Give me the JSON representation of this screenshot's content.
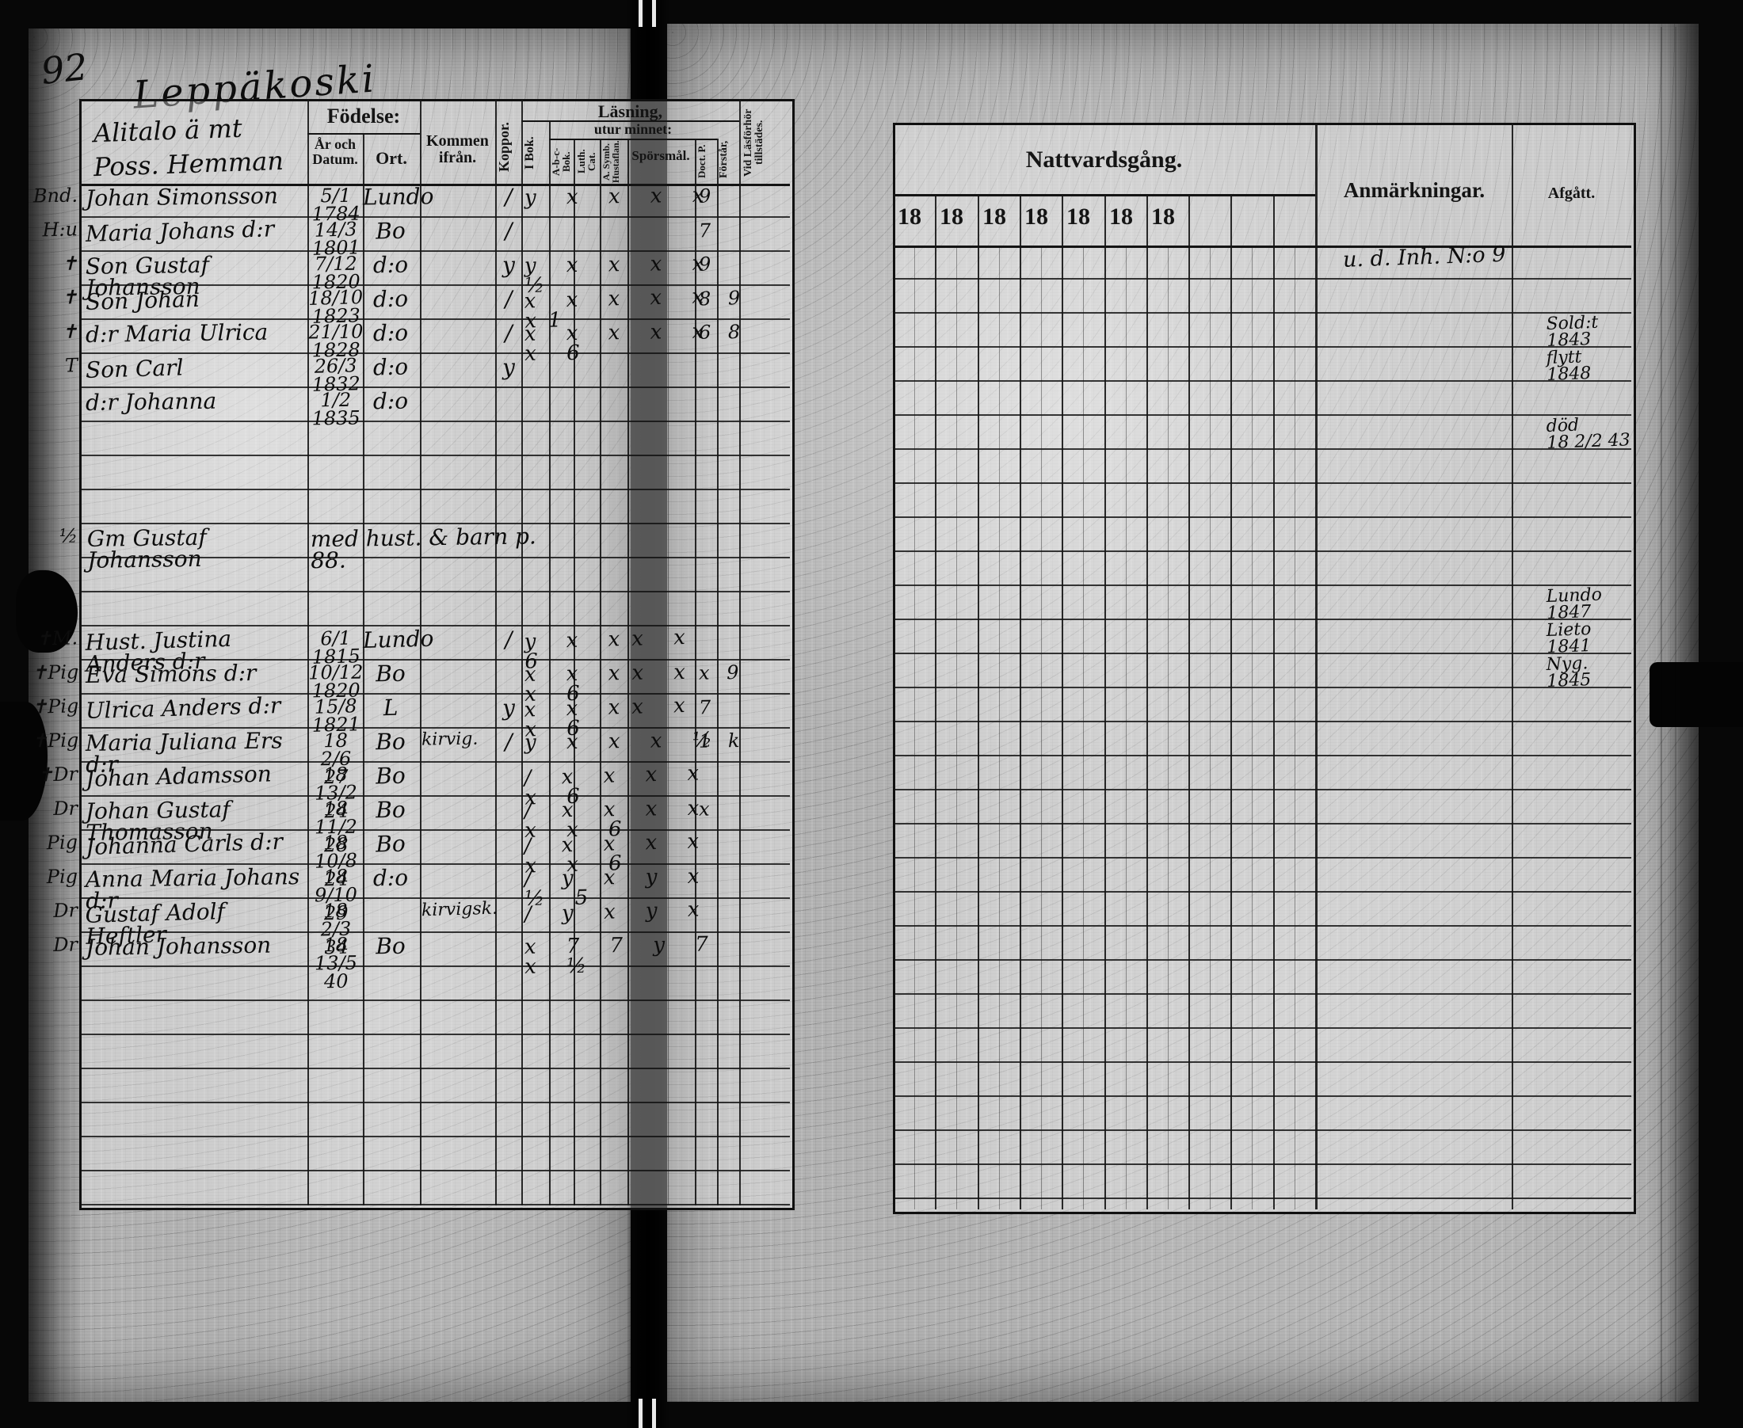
{
  "page": {
    "page_number": "92",
    "place_title": "Leppäkoski"
  },
  "left_page": {
    "farm_label_line1": "Alitalo ä mt",
    "farm_label_line2": "Poss. Hemman",
    "headers": {
      "fodelse": "Födelse:",
      "ar_och_datum": "År och Datum.",
      "ort": "Ort.",
      "kommen_ifran": "Kommen ifrån.",
      "koppor": "Koppor.",
      "lasning": "Läsning,",
      "utur_minnet": "utur minnet:",
      "i_bok": "I Bok.",
      "abc_bok": "A-b-c-Bok.",
      "luth_cat": "Luth. Cat.",
      "a_symb_hustaflan": "A. Symb. Hustaflan.",
      "sporsmal": "Spörs­mål.",
      "doct_p": "Doct. P.",
      "forstar": "Förstår,",
      "vid_lasforhor": "Vid Läsförhör tillstädes."
    },
    "rows": [
      {
        "margin": "Bnd.",
        "name": "Johan Simonsson",
        "born": "5/1 1784",
        "ort": "Lundo",
        "from": "",
        "koppor": "/",
        "marks": "y x x x x",
        "forhor": "9"
      },
      {
        "margin": "H:u",
        "name": "Maria Johans d:r",
        "born": "14/3 1801",
        "ort": "Bo",
        "from": "",
        "koppor": "/",
        "marks": "",
        "forhor": "7"
      },
      {
        "margin": "✝",
        "name": "Son Gustaf Johansson",
        "born": "7/12 1820",
        "ort": "d:o",
        "from": "",
        "koppor": "y",
        "marks": "y x x x x ½",
        "forhor": "9"
      },
      {
        "margin": "✝",
        "name": "Son Johan",
        "born": "18/10 1823",
        "ort": "d:o",
        "from": "",
        "koppor": "/",
        "marks": "x x x x x x1",
        "forhor": "8 9"
      },
      {
        "margin": "✝",
        "name": "d:r Maria Ulrica",
        "born": "21/10 1828",
        "ort": "d:o",
        "from": "",
        "koppor": "/",
        "marks": "x x x x x x 6",
        "forhor": "6  8"
      },
      {
        "margin": "T",
        "name": "Son Carl",
        "born": "26/3 1832",
        "ort": "d:o",
        "from": "",
        "koppor": "y",
        "marks": "",
        "forhor": ""
      },
      {
        "margin": "",
        "name": "d:r Johanna",
        "born": "1/2 1835",
        "ort": "d:o",
        "from": "",
        "koppor": "",
        "marks": "",
        "forhor": ""
      },
      {
        "margin": "",
        "name": "",
        "born": "",
        "ort": "",
        "from": "",
        "koppor": "",
        "marks": "",
        "forhor": ""
      },
      {
        "margin": "",
        "name": "",
        "born": "",
        "ort": "",
        "from": "",
        "koppor": "",
        "marks": "",
        "forhor": ""
      },
      {
        "margin": "",
        "name": "",
        "born": "",
        "ort": "",
        "from": "",
        "koppor": "",
        "marks": "",
        "forhor": ""
      },
      {
        "margin": "½",
        "note_name": "Gm Gustaf Johansson",
        "note": "med hust. & barn p. 88."
      },
      {
        "margin": "",
        "name": "",
        "born": "",
        "ort": "",
        "from": "",
        "koppor": "",
        "marks": "",
        "forhor": ""
      },
      {
        "margin": "",
        "name": "",
        "born": "",
        "ort": "",
        "from": "",
        "koppor": "",
        "marks": "",
        "forhor": ""
      },
      {
        "margin": "✝M.",
        "name": "Hust. Justina Anders d:r",
        "born": "6/1 1815",
        "ort": "Lundo",
        "from": "",
        "koppor": "/",
        "marks": "y x xx x 6",
        "forhor": ""
      },
      {
        "margin": "✝Pig",
        "name": "Eva Simons d:r",
        "born": "10/12 1820",
        "ort": "Bo",
        "from": "",
        "koppor": "",
        "marks": "x x xx x x 6",
        "forhor": "x  9"
      },
      {
        "margin": "✝Pig",
        "name": "Ulrica Anders d:r",
        "born": "15/8 1821",
        "ort": "L",
        "from": "",
        "koppor": "y",
        "marks": "x x xx x x 6",
        "forhor": "7"
      },
      {
        "margin": "✝Pig",
        "name": "Maria Juliana Ers d:r",
        "born": "18 2/6 27",
        "ort": "Bo",
        "from": "kirvig.",
        "koppor": "/",
        "marks": "y x x x ½",
        "forhor": "1 k"
      },
      {
        "margin": "✝Dr",
        "name": "Johan Adamsson",
        "born": "18 13/2 24",
        "ort": "Bo",
        "from": "",
        "koppor": "",
        "marks": "/ x x x x x 6",
        "forhor": ""
      },
      {
        "margin": "Dr",
        "name": "Johan Gustaf Thomasson",
        "born": "18 11/2 28",
        "ort": "Bo",
        "from": "",
        "koppor": "",
        "marks": "/ x x x x x x 6",
        "forhor": "x"
      },
      {
        "margin": "Pig",
        "name": "Johanna Carls d:r",
        "born": "18 10/8 24",
        "ort": "Bo",
        "from": "",
        "koppor": "",
        "marks": "/ x x x x x x 6",
        "forhor": ""
      },
      {
        "margin": "Pig",
        "name": "Anna Maria Johans d:r",
        "born": "18 9/10 29",
        "ort": "d:o",
        "from": "",
        "koppor": "",
        "marks": "/ y x y x ½ 5",
        "forhor": ""
      },
      {
        "margin": "Dr",
        "name": "Gustaf Adolf Heftler",
        "born": "18 2/3 34",
        "ort": "",
        "from": "kirvigsk.",
        "koppor": "",
        "marks": "/ y x y x",
        "forhor": ""
      },
      {
        "margin": "Dr",
        "name": "Johan Johansson",
        "born": "18 13/5 40",
        "ort": "Bo",
        "from": "",
        "koppor": "",
        "marks": "x 7 7 y 7 x ½",
        "forhor": ""
      },
      {
        "margin": "",
        "name": "",
        "born": "",
        "ort": "",
        "from": "",
        "koppor": "",
        "marks": "",
        "forhor": ""
      },
      {
        "margin": "",
        "name": "",
        "born": "",
        "ort": "",
        "from": "",
        "koppor": "",
        "marks": "",
        "forhor": ""
      },
      {
        "margin": "",
        "name": "",
        "born": "",
        "ort": "",
        "from": "",
        "koppor": "",
        "marks": "",
        "forhor": ""
      },
      {
        "margin": "",
        "name": "",
        "born": "",
        "ort": "",
        "from": "",
        "koppor": "",
        "marks": "",
        "forhor": ""
      },
      {
        "margin": "",
        "name": "",
        "born": "",
        "ort": "",
        "from": "",
        "koppor": "",
        "marks": "",
        "forhor": ""
      },
      {
        "margin": "",
        "name": "",
        "born": "",
        "ort": "",
        "from": "",
        "koppor": "",
        "marks": "",
        "forhor": ""
      },
      {
        "margin": "",
        "name": "",
        "born": "",
        "ort": "",
        "from": "",
        "koppor": "",
        "marks": "",
        "forhor": ""
      }
    ]
  },
  "right_page": {
    "headers": {
      "nattvardsgang": "Nattvardsgång.",
      "anmarkningar": "Anmärkningar.",
      "afgatt": "Afgått."
    },
    "year_labels": [
      "18",
      "18",
      "18",
      "18",
      "18",
      "18",
      "18"
    ],
    "annotations": [
      {
        "column": "anmarkningar",
        "row": 0,
        "text": "u. d. Inh. N:o 9"
      },
      {
        "column": "afgatt",
        "row": 2,
        "text": "Sold:t\n1843"
      },
      {
        "column": "afgatt",
        "row": 3,
        "text": "flytt\n1848"
      },
      {
        "column": "afgatt",
        "row": 5,
        "text": "död\n18 2/2 43"
      },
      {
        "column": "afgatt",
        "row": 10,
        "text": "Lundo\n1847"
      },
      {
        "column": "afgatt",
        "row": 11,
        "text": "Lieto\n1841"
      },
      {
        "column": "afgatt",
        "row": 12,
        "text": "Nyg.\n1845"
      }
    ]
  }
}
